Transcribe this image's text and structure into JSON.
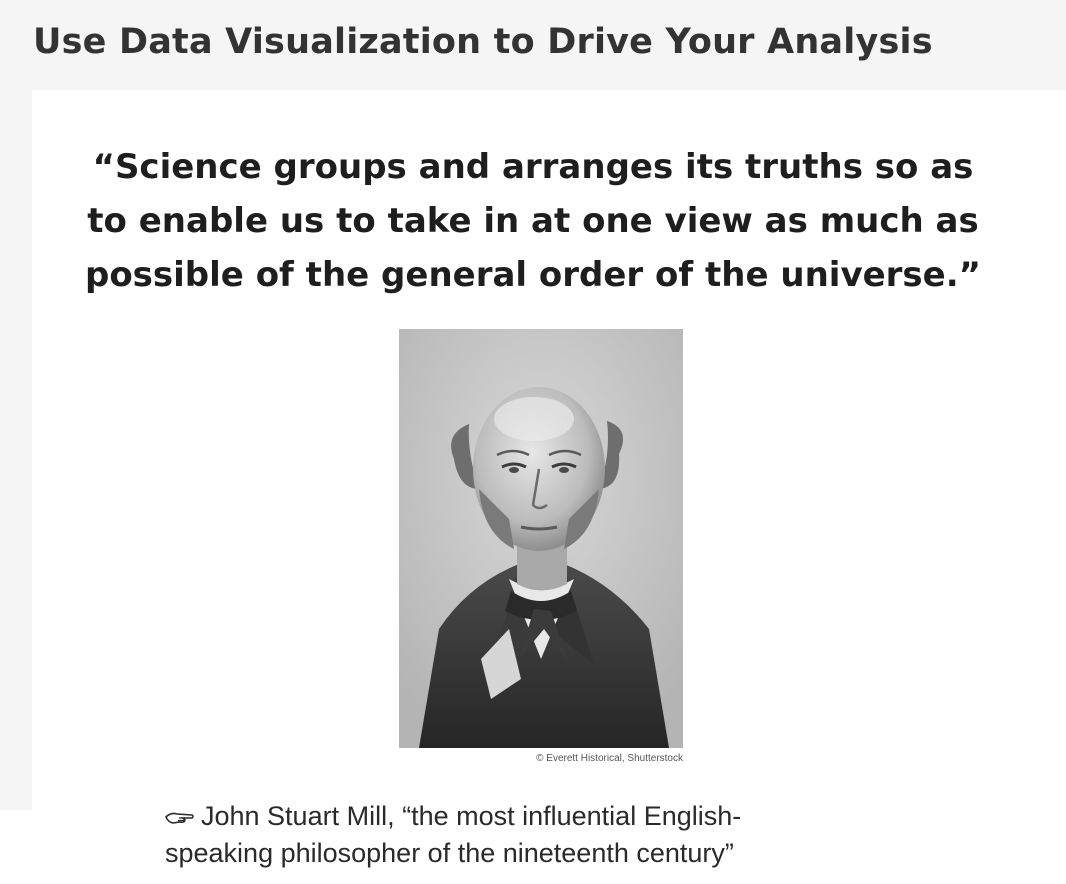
{
  "lesson": {
    "title": "Use Data Visualization to Drive Your Analysis"
  },
  "slide": {
    "quote_lines": [
      "“Science groups and arranges its truths so as",
      "to enable us to take in at one view as much as",
      "possible of the general order of the universe.”"
    ],
    "photo_credit": "© Everett Historical, Shutterstock",
    "attribution_lines": [
      "John Stuart Mill, “the most influential English-",
      "speaking philosopher of the nineteenth century”"
    ],
    "bullet_icon": "pointing-hand-icon"
  }
}
